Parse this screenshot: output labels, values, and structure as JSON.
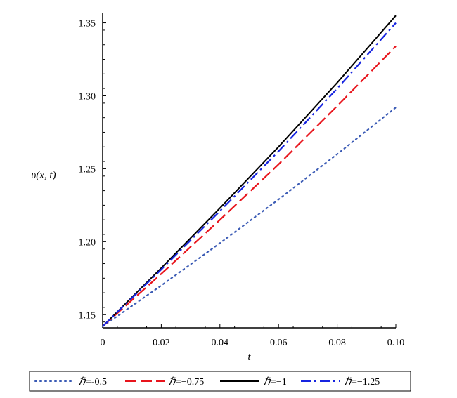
{
  "chart_data": {
    "type": "line",
    "title": "",
    "xlabel": "t",
    "ylabel": "υ(x, t)",
    "xlim": [
      0,
      0.1
    ],
    "ylim": [
      1.141,
      1.357
    ],
    "x_ticks": [
      "0",
      "0.02",
      "0.04",
      "0.06",
      "0.08",
      "0.10"
    ],
    "y_ticks": [
      "1.15",
      "1.20",
      "1.25",
      "1.30",
      "1.35"
    ],
    "grid": false,
    "legend_position": "bottom",
    "series": [
      {
        "name": "ℏ=-0.5",
        "hbar": "ℏ",
        "value": "=-0.5",
        "color": "#3b5bb5",
        "style": "dotted",
        "x": [
          0,
          0.02,
          0.04,
          0.06,
          0.08,
          0.1
        ],
        "y": [
          1.142,
          1.17,
          1.199,
          1.229,
          1.26,
          1.292
        ]
      },
      {
        "name": "ℏ=−0.75",
        "hbar": "ℏ",
        "value": "=−0.75",
        "color": "#e8141c",
        "style": "dashed",
        "x": [
          0,
          0.02,
          0.04,
          0.06,
          0.08,
          0.1
        ],
        "y": [
          1.142,
          1.178,
          1.215,
          1.253,
          1.293,
          1.334
        ]
      },
      {
        "name": "ℏ=−1",
        "hbar": "ℏ",
        "value": "=−1",
        "color": "#000000",
        "style": "solid",
        "x": [
          0,
          0.02,
          0.04,
          0.06,
          0.08,
          0.1
        ],
        "y": [
          1.142,
          1.182,
          1.223,
          1.265,
          1.309,
          1.355
        ]
      },
      {
        "name": "ℏ=−1.25",
        "hbar": "ℏ",
        "value": "=−1.25",
        "color": "#1624e0",
        "style": "dashdot",
        "x": [
          0,
          0.02,
          0.04,
          0.06,
          0.08,
          0.1
        ],
        "y": [
          1.142,
          1.181,
          1.221,
          1.262,
          1.305,
          1.35
        ]
      }
    ]
  }
}
